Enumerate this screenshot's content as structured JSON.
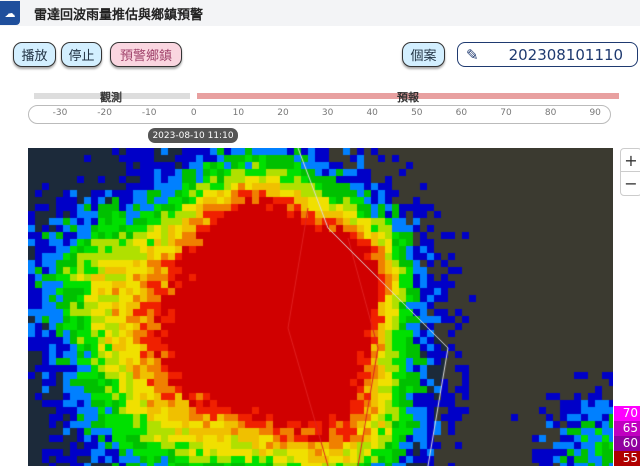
{
  "header": {
    "icon": "rain-cloud-icon",
    "title": "雷達回波雨量推估與鄉鎮預警"
  },
  "toolbar": {
    "play": "播放",
    "stop": "停止",
    "warning_towns": "預警鄉鎮",
    "case": "個案",
    "datetime": "202308101110",
    "edit_icon": "pencil-icon"
  },
  "timeline": {
    "observed": "觀測",
    "forecast": "預報",
    "ticks": [
      "-30",
      "-20",
      "-10",
      "0",
      "10",
      "20",
      "30",
      "40",
      "50",
      "60",
      "70",
      "80",
      "90"
    ],
    "current": "2023-08-10 11:10"
  },
  "map": {
    "zoom_in": "+",
    "zoom_out": "−"
  },
  "legend": [
    {
      "v": "70",
      "c": "#ff00ff"
    },
    {
      "v": "65",
      "c": "#c000c0"
    },
    {
      "v": "60",
      "c": "#9000a0"
    },
    {
      "v": "55",
      "c": "#b00000"
    }
  ]
}
